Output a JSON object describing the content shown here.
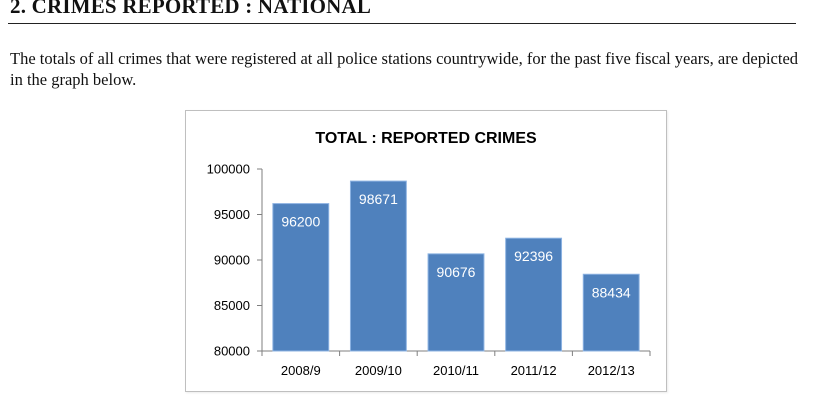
{
  "section": {
    "heading": "2.  CRIMES REPORTED : NATIONAL",
    "intro": "The totals of all crimes that were registered at all police stations countrywide, for the past five fiscal years, are depicted in the graph below."
  },
  "colors": {
    "bar": "#4f81bd",
    "bar_edge": "#8db3e2",
    "axis": "#7f7f7f",
    "frame_border": "#bfbfbf"
  },
  "chart_data": {
    "type": "bar",
    "title": "TOTAL : REPORTED CRIMES",
    "xlabel": "",
    "ylabel": "",
    "categories": [
      "2008/9",
      "2009/10",
      "2010/11",
      "2011/12",
      "2012/13"
    ],
    "values": [
      96200,
      98671,
      90676,
      92396,
      88434
    ],
    "data_labels": [
      "96200",
      "98671",
      "90676",
      "92396",
      "88434"
    ],
    "ylim": [
      80000,
      100000
    ],
    "yticks": [
      80000,
      85000,
      90000,
      95000,
      100000
    ],
    "ytick_labels": [
      "80000",
      "85000",
      "90000",
      "95000",
      "100000"
    ],
    "grid": false,
    "legend": "none"
  }
}
